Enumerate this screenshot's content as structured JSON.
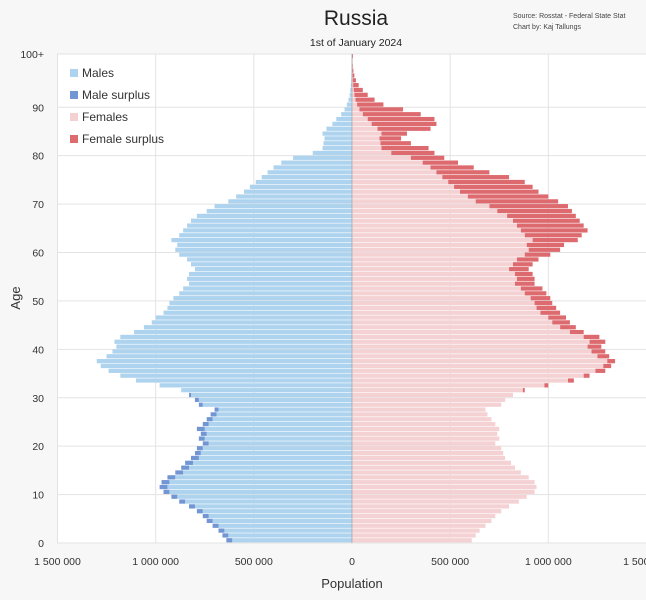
{
  "chart_data": {
    "type": "bar",
    "orientation": "horizontal-population-pyramid",
    "title": "Russia",
    "subtitle": "1st of January 2024",
    "source_lines": [
      "Source: Rosstat - Federal State Stat",
      "Chart by: Kaj Tallungs"
    ],
    "xlabel": "Population",
    "ylabel": "Age",
    "xlim": [
      -1500000,
      1500000
    ],
    "ylim": [
      0,
      100
    ],
    "x_ticks": [
      {
        "value": -1500000,
        "label": "1 500 000"
      },
      {
        "value": -1000000,
        "label": "1 000 000"
      },
      {
        "value": -500000,
        "label": "500 000"
      },
      {
        "value": 0,
        "label": "0"
      },
      {
        "value": 500000,
        "label": "500 000"
      },
      {
        "value": 1000000,
        "label": "1 000 000"
      },
      {
        "value": 1500000,
        "label": "1 500 000"
      }
    ],
    "y_ticks": [
      {
        "value": 0,
        "label": "0"
      },
      {
        "value": 10,
        "label": "10"
      },
      {
        "value": 20,
        "label": "20"
      },
      {
        "value": 30,
        "label": "30"
      },
      {
        "value": 40,
        "label": "40"
      },
      {
        "value": 50,
        "label": "50"
      },
      {
        "value": 60,
        "label": "60"
      },
      {
        "value": 70,
        "label": "70"
      },
      {
        "value": 80,
        "label": "80"
      },
      {
        "value": 90,
        "label": "90"
      },
      {
        "value": 100,
        "label": "100+"
      }
    ],
    "grid": true,
    "legend_position": "top-left",
    "legend": [
      {
        "label": "Males",
        "color": "#aed3ee"
      },
      {
        "label": "Male surplus",
        "color": "#7295d3"
      },
      {
        "label": "Females",
        "color": "#f4d2d4"
      },
      {
        "label": "Female surplus",
        "color": "#dd6a6e"
      }
    ],
    "ages": [
      0,
      1,
      2,
      3,
      4,
      5,
      6,
      7,
      8,
      9,
      10,
      11,
      12,
      13,
      14,
      15,
      16,
      17,
      18,
      19,
      20,
      21,
      22,
      23,
      24,
      25,
      26,
      27,
      28,
      29,
      30,
      31,
      32,
      33,
      34,
      35,
      36,
      37,
      38,
      39,
      40,
      41,
      42,
      43,
      44,
      45,
      46,
      47,
      48,
      49,
      50,
      51,
      52,
      53,
      54,
      55,
      56,
      57,
      58,
      59,
      60,
      61,
      62,
      63,
      64,
      65,
      66,
      67,
      68,
      69,
      70,
      71,
      72,
      73,
      74,
      75,
      76,
      77,
      78,
      79,
      80,
      81,
      82,
      83,
      84,
      85,
      86,
      87,
      88,
      89,
      90,
      91,
      92,
      93,
      94,
      95,
      96,
      97,
      98,
      99,
      100
    ],
    "series": [
      {
        "name": "Males",
        "values": [
          640000,
          660000,
          680000,
          710000,
          740000,
          760000,
          790000,
          830000,
          880000,
          920000,
          960000,
          980000,
          970000,
          940000,
          900000,
          870000,
          850000,
          820000,
          800000,
          790000,
          760000,
          780000,
          770000,
          790000,
          760000,
          740000,
          720000,
          700000,
          780000,
          800000,
          830000,
          870000,
          980000,
          1100000,
          1180000,
          1240000,
          1280000,
          1300000,
          1250000,
          1220000,
          1200000,
          1210000,
          1180000,
          1110000,
          1060000,
          1020000,
          1000000,
          960000,
          940000,
          930000,
          910000,
          880000,
          860000,
          830000,
          840000,
          830000,
          800000,
          820000,
          840000,
          880000,
          900000,
          890000,
          920000,
          880000,
          860000,
          840000,
          820000,
          790000,
          740000,
          700000,
          630000,
          590000,
          550000,
          520000,
          490000,
          460000,
          430000,
          400000,
          360000,
          300000,
          200000,
          150000,
          145000,
          140000,
          150000,
          130000,
          100000,
          80000,
          55000,
          38000,
          26000,
          18000,
          12000,
          9000,
          6000,
          4000,
          3000,
          2000,
          1500,
          1000,
          2000
        ]
      },
      {
        "name": "Females",
        "values": [
          610000,
          630000,
          650000,
          680000,
          710000,
          730000,
          760000,
          800000,
          850000,
          890000,
          930000,
          940000,
          930000,
          900000,
          860000,
          830000,
          810000,
          780000,
          770000,
          760000,
          730000,
          750000,
          740000,
          750000,
          730000,
          710000,
          690000,
          680000,
          760000,
          780000,
          820000,
          880000,
          1000000,
          1130000,
          1210000,
          1290000,
          1320000,
          1340000,
          1310000,
          1290000,
          1270000,
          1290000,
          1260000,
          1180000,
          1140000,
          1110000,
          1090000,
          1060000,
          1040000,
          1020000,
          1010000,
          990000,
          970000,
          930000,
          930000,
          920000,
          900000,
          920000,
          950000,
          1010000,
          1060000,
          1080000,
          1150000,
          1170000,
          1200000,
          1180000,
          1160000,
          1140000,
          1120000,
          1100000,
          1050000,
          1000000,
          950000,
          920000,
          880000,
          800000,
          700000,
          620000,
          540000,
          470000,
          420000,
          390000,
          300000,
          250000,
          280000,
          400000,
          430000,
          420000,
          350000,
          260000,
          160000,
          115000,
          80000,
          55000,
          34000,
          20000,
          12000,
          7000,
          4000,
          2500,
          5000
        ]
      }
    ]
  }
}
